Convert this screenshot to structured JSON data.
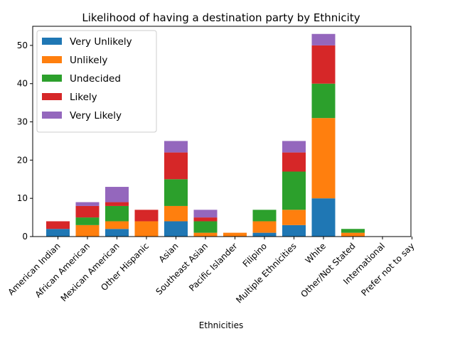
{
  "chart_data": {
    "type": "bar",
    "stacked": true,
    "title": "Likelihood of having a destination party by Ethnicity",
    "xlabel": "Ethnicities",
    "ylabel": "",
    "ylim": [
      0,
      55
    ],
    "yticks": [
      0,
      10,
      20,
      30,
      40,
      50
    ],
    "grid": false,
    "legend_position": "top-left",
    "categories": [
      "American Indian",
      "African American",
      "Mexican American",
      "Other Hispanic",
      "Asian",
      "Southeast Asian",
      "Pacific Islander",
      "Filipino",
      "Multiple Ethnicities",
      "White",
      "Other/Not Stated",
      "International",
      "Prefer not to say"
    ],
    "series": [
      {
        "name": "Very Unlikely",
        "color": "#1f77b4",
        "values": [
          2,
          0,
          2,
          0,
          4,
          0,
          0,
          1,
          3,
          10,
          0,
          0,
          0
        ]
      },
      {
        "name": "Unlikely",
        "color": "#ff7f0e",
        "values": [
          0,
          3,
          2,
          4,
          4,
          1,
          1,
          3,
          4,
          21,
          1,
          0,
          0
        ]
      },
      {
        "name": "Undecided",
        "color": "#2ca02c",
        "values": [
          0,
          2,
          4,
          0,
          7,
          3,
          0,
          3,
          10,
          9,
          1,
          0,
          0
        ]
      },
      {
        "name": "Likely",
        "color": "#d62728",
        "values": [
          2,
          3,
          1,
          3,
          7,
          1,
          0,
          0,
          5,
          10,
          0,
          0,
          0
        ]
      },
      {
        "name": "Very Likely",
        "color": "#9467bd",
        "values": [
          0,
          1,
          4,
          0,
          3,
          2,
          0,
          0,
          3,
          3,
          0,
          0,
          0
        ]
      }
    ]
  }
}
